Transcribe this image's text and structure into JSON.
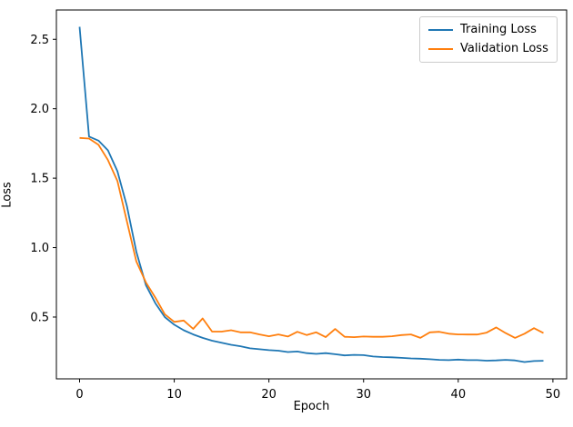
{
  "chart_data": {
    "type": "line",
    "title": "",
    "xlabel": "Epoch",
    "ylabel": "Loss",
    "grid": false,
    "legend_position": "upper right",
    "background_color": "#ffffff",
    "spine_color": "#000000",
    "tick_label_color": "#000000",
    "xlim": [
      -2.45,
      51.45
    ],
    "ylim": [
      0.055,
      2.711
    ],
    "xticks": [
      0,
      10,
      20,
      30,
      40,
      50
    ],
    "xtick_labels": [
      "0",
      "10",
      "20",
      "30",
      "40",
      "50"
    ],
    "yticks": [
      0.5,
      1.0,
      1.5,
      2.0,
      2.5
    ],
    "ytick_labels": [
      "0.5",
      "1.0",
      "1.5",
      "2.0",
      "2.5"
    ],
    "x": [
      0,
      1,
      2,
      3,
      4,
      5,
      6,
      7,
      8,
      9,
      10,
      11,
      12,
      13,
      14,
      15,
      16,
      17,
      18,
      19,
      20,
      21,
      22,
      23,
      24,
      25,
      26,
      27,
      28,
      29,
      30,
      31,
      32,
      33,
      34,
      35,
      36,
      37,
      38,
      39,
      40,
      41,
      42,
      43,
      44,
      45,
      46,
      47,
      48,
      49
    ],
    "series": [
      {
        "name": "Training Loss",
        "color": "#1f77b4",
        "values": [
          2.59,
          1.8,
          1.77,
          1.7,
          1.55,
          1.3,
          0.97,
          0.73,
          0.6,
          0.5,
          0.445,
          0.405,
          0.375,
          0.35,
          0.33,
          0.315,
          0.3,
          0.29,
          0.275,
          0.268,
          0.262,
          0.258,
          0.248,
          0.252,
          0.24,
          0.235,
          0.24,
          0.232,
          0.224,
          0.228,
          0.226,
          0.216,
          0.212,
          0.21,
          0.206,
          0.202,
          0.2,
          0.196,
          0.192,
          0.19,
          0.194,
          0.19,
          0.19,
          0.186,
          0.188,
          0.192,
          0.188,
          0.176,
          0.183,
          0.185
        ]
      },
      {
        "name": "Validation Loss",
        "color": "#ff7f0e",
        "values": [
          1.79,
          1.785,
          1.74,
          1.63,
          1.48,
          1.19,
          0.9,
          0.75,
          0.64,
          0.52,
          0.465,
          0.475,
          0.415,
          0.49,
          0.395,
          0.395,
          0.405,
          0.39,
          0.39,
          0.375,
          0.362,
          0.375,
          0.36,
          0.394,
          0.37,
          0.39,
          0.355,
          0.414,
          0.358,
          0.355,
          0.36,
          0.358,
          0.358,
          0.362,
          0.37,
          0.375,
          0.35,
          0.39,
          0.394,
          0.38,
          0.375,
          0.374,
          0.374,
          0.388,
          0.425,
          0.385,
          0.35,
          0.38,
          0.42,
          0.385
        ]
      }
    ]
  }
}
